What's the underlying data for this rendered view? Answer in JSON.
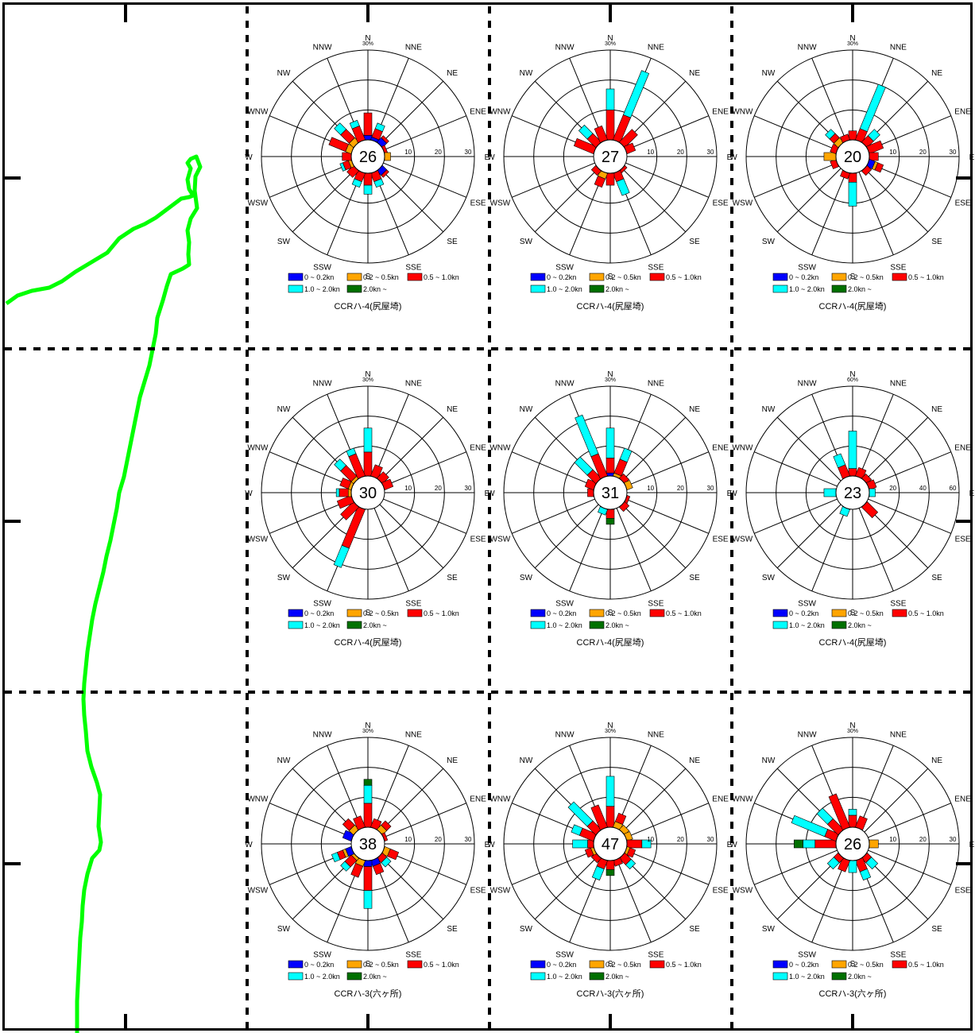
{
  "colors": {
    "speed_bins": [
      "#0000ff",
      "#ffa500",
      "#ff0000",
      "#00ffff",
      "#007000"
    ],
    "coastline": "#00ff00",
    "frame": "#000000",
    "circle": "#000000"
  },
  "legend": {
    "speed_bins": [
      "0 ~ 0.2kn",
      "0.2 ~ 0.5kn",
      "0.5 ~ 1.0kn",
      "1.0 ~ 2.0kn",
      "2.0kn ~"
    ]
  },
  "directions": [
    "N",
    "NNE",
    "NE",
    "ENE",
    "E",
    "ESE",
    "SE",
    "SSE",
    "S",
    "SSW",
    "SW",
    "WSW",
    "W",
    "WNW",
    "NW",
    "NNW"
  ],
  "chart_data": [
    {
      "type": "wind_rose",
      "center_label": "26",
      "station": "CCRハ-4(尻屋埼)",
      "rmax": 30,
      "scale_ticks": [
        "10",
        "20",
        "30"
      ],
      "scale_unit": "%",
      "values": [
        [
          1.5,
          0,
          7.5,
          0,
          0
        ],
        [
          1,
          0,
          3,
          2,
          0
        ],
        [
          2,
          0,
          1,
          0,
          0
        ],
        [
          0,
          0,
          1,
          0,
          0
        ],
        [
          0,
          2,
          0,
          0,
          0
        ],
        [
          0,
          0,
          0,
          0,
          0
        ],
        [
          2,
          0,
          1,
          0,
          0
        ],
        [
          0,
          0,
          3,
          2,
          0
        ],
        [
          0,
          0,
          4,
          3,
          0
        ],
        [
          0,
          0,
          3,
          2,
          0
        ],
        [
          0,
          0,
          3,
          0,
          0
        ],
        [
          0,
          1,
          2,
          1,
          0
        ],
        [
          0,
          0,
          3,
          0,
          0
        ],
        [
          0,
          2,
          6,
          0,
          0
        ],
        [
          0,
          2,
          4,
          3,
          0
        ],
        [
          0,
          0,
          5,
          2,
          0
        ]
      ]
    },
    {
      "type": "wind_rose",
      "center_label": "27",
      "station": "CCRハ-4(尻屋埼)",
      "rmax": 30,
      "scale_ticks": [
        "10",
        "20",
        "30"
      ],
      "scale_unit": "%",
      "values": [
        [
          0,
          0,
          10,
          7,
          0
        ],
        [
          0,
          0,
          9,
          16,
          0
        ],
        [
          0,
          0,
          6,
          0,
          0
        ],
        [
          0,
          0,
          3,
          0,
          0
        ],
        [
          0,
          0,
          0,
          0,
          0
        ],
        [
          0,
          0,
          0,
          0,
          0
        ],
        [
          0,
          0,
          1,
          0,
          0
        ],
        [
          0,
          0,
          3,
          5,
          0
        ],
        [
          0,
          0,
          4,
          0,
          0
        ],
        [
          0,
          2,
          3,
          0,
          0
        ],
        [
          0,
          0,
          2,
          0,
          0
        ],
        [
          0,
          0,
          0,
          0,
          0
        ],
        [
          0,
          0,
          0,
          0,
          0
        ],
        [
          0,
          0,
          7,
          0,
          0
        ],
        [
          0,
          0,
          4,
          4,
          0
        ],
        [
          0,
          0,
          5,
          0,
          0
        ]
      ]
    },
    {
      "type": "wind_rose",
      "center_label": "20",
      "station": "CCRハ-4(尻屋埼)",
      "rmax": 30,
      "scale_ticks": [
        "10",
        "20",
        "30"
      ],
      "scale_unit": "%",
      "values": [
        [
          0,
          0,
          3,
          0,
          0
        ],
        [
          0,
          0,
          4,
          16,
          0
        ],
        [
          0,
          0,
          3,
          3,
          0
        ],
        [
          0,
          0,
          5,
          0,
          0
        ],
        [
          0,
          0,
          3,
          0,
          0
        ],
        [
          2,
          1,
          2,
          0,
          0
        ],
        [
          0,
          0,
          2,
          0,
          0
        ],
        [
          0,
          0,
          0,
          0,
          0
        ],
        [
          0,
          0,
          3,
          8,
          0
        ],
        [
          0,
          0,
          2,
          0,
          0
        ],
        [
          0,
          0,
          0,
          0,
          0
        ],
        [
          0,
          0,
          2,
          0,
          0
        ],
        [
          0,
          4,
          0,
          0,
          0
        ],
        [
          0,
          0,
          2,
          0,
          0
        ],
        [
          0,
          2,
          2,
          2,
          0
        ],
        [
          0,
          0,
          2,
          0,
          0
        ]
      ]
    },
    {
      "type": "wind_rose",
      "center_label": "30",
      "station": "CCRハ-4(尻屋埼)",
      "rmax": 30,
      "scale_ticks": [
        "10",
        "20",
        "30"
      ],
      "scale_unit": "%",
      "values": [
        [
          0,
          0,
          8,
          8,
          0
        ],
        [
          0,
          0,
          4,
          0,
          0
        ],
        [
          0,
          0,
          3,
          0,
          0
        ],
        [
          0,
          0,
          3,
          0,
          0
        ],
        [
          0,
          0,
          0,
          0,
          0
        ],
        [
          0,
          0,
          0,
          0,
          0
        ],
        [
          0,
          0,
          0,
          0,
          0
        ],
        [
          0,
          0,
          0,
          0,
          0
        ],
        [
          0,
          0,
          0,
          0,
          0
        ],
        [
          0,
          0,
          14,
          7,
          0
        ],
        [
          0,
          0,
          6,
          0,
          0
        ],
        [
          0,
          0,
          5,
          0,
          0
        ],
        [
          0,
          1,
          3,
          1,
          0
        ],
        [
          0,
          1,
          3,
          0,
          0
        ],
        [
          0,
          1,
          5,
          3,
          0
        ],
        [
          0,
          0,
          8,
          2,
          0
        ]
      ]
    },
    {
      "type": "wind_rose",
      "center_label": "31",
      "station": "CCRハ-4(尻屋埼)",
      "rmax": 30,
      "scale_ticks": [
        "10",
        "20",
        "30"
      ],
      "scale_unit": "%",
      "values": [
        [
          1,
          0,
          5,
          10,
          0
        ],
        [
          0,
          1,
          5,
          4,
          0
        ],
        [
          0,
          0,
          2,
          0,
          0
        ],
        [
          0,
          2,
          0,
          0,
          0
        ],
        [
          0,
          0,
          0,
          0,
          0
        ],
        [
          0,
          0,
          1,
          0,
          0
        ],
        [
          0,
          0,
          2,
          0,
          0
        ],
        [
          0,
          0,
          0,
          0,
          0
        ],
        [
          0,
          0,
          3,
          0,
          2
        ],
        [
          0,
          0,
          0,
          2,
          0
        ],
        [
          0,
          0,
          0,
          0,
          0
        ],
        [
          0,
          0,
          0,
          0,
          0
        ],
        [
          0,
          0,
          2,
          0,
          0
        ],
        [
          0,
          0,
          3,
          0,
          0
        ],
        [
          0,
          0,
          4,
          6,
          0
        ],
        [
          0,
          0,
          8,
          14,
          0
        ]
      ]
    },
    {
      "type": "wind_rose",
      "center_label": "23",
      "station": "CCRハ-4(尻屋埼)",
      "rmax": 60,
      "scale_ticks": [
        "20",
        "40",
        "60"
      ],
      "scale_unit": "%",
      "values": [
        [
          0,
          0,
          5,
          25,
          0
        ],
        [
          0,
          0,
          6,
          0,
          0
        ],
        [
          0,
          0,
          4,
          0,
          0
        ],
        [
          0,
          0,
          5,
          0,
          0
        ],
        [
          0,
          0,
          0,
          4,
          0
        ],
        [
          0,
          0,
          0,
          0,
          0
        ],
        [
          0,
          0,
          10,
          0,
          0
        ],
        [
          0,
          0,
          0,
          0,
          0
        ],
        [
          0,
          0,
          0,
          0,
          0
        ],
        [
          0,
          0,
          0,
          5,
          0
        ],
        [
          0,
          0,
          0,
          0,
          0
        ],
        [
          0,
          0,
          0,
          0,
          0
        ],
        [
          0,
          0,
          0,
          8,
          0
        ],
        [
          0,
          0,
          0,
          0,
          0
        ],
        [
          0,
          0,
          0,
          0,
          0
        ],
        [
          0,
          0,
          8,
          8,
          0
        ]
      ]
    },
    {
      "type": "wind_rose",
      "center_label": "38",
      "station": "CCRハ-3(六ヶ所)",
      "rmax": 30,
      "scale_ticks": [
        "10",
        "20",
        "30"
      ],
      "scale_unit": "%",
      "values": [
        [
          0,
          0,
          8,
          6,
          2
        ],
        [
          0,
          0,
          3,
          0,
          0
        ],
        [
          0,
          2,
          2,
          0,
          0
        ],
        [
          0,
          0,
          1,
          0,
          0
        ],
        [
          0,
          0,
          0,
          0,
          0
        ],
        [
          0,
          2,
          3,
          0,
          0
        ],
        [
          0,
          0,
          2,
          2,
          0
        ],
        [
          2,
          0,
          3,
          0,
          0
        ],
        [
          2,
          0,
          8,
          6,
          0
        ],
        [
          0,
          2,
          4,
          0,
          0
        ],
        [
          0,
          1,
          3,
          2,
          0
        ],
        [
          2,
          1,
          2,
          2,
          0
        ],
        [
          0,
          0,
          0,
          0,
          0
        ],
        [
          3,
          0,
          0,
          0,
          0
        ],
        [
          0,
          2,
          3,
          0,
          0
        ],
        [
          0,
          0,
          4,
          0,
          0
        ]
      ]
    },
    {
      "type": "wind_rose",
      "center_label": "47",
      "station": "CCRハ-3(六ヶ所)",
      "rmax": 30,
      "scale_ticks": [
        "10",
        "20",
        "30"
      ],
      "scale_unit": "%",
      "values": [
        [
          0,
          0,
          7,
          10,
          0
        ],
        [
          0,
          2,
          3,
          0,
          0
        ],
        [
          0,
          2,
          0,
          0,
          0
        ],
        [
          0,
          2,
          0,
          0,
          0
        ],
        [
          0,
          0,
          5,
          3,
          0
        ],
        [
          0,
          1,
          2,
          0,
          0
        ],
        [
          0,
          0,
          3,
          2,
          0
        ],
        [
          0,
          0,
          2,
          0,
          0
        ],
        [
          0,
          0,
          3,
          0,
          2
        ],
        [
          0,
          0,
          3,
          4,
          0
        ],
        [
          0,
          0,
          2,
          0,
          0
        ],
        [
          0,
          1,
          2,
          0,
          0
        ],
        [
          0,
          0,
          2,
          5,
          0
        ],
        [
          0,
          0,
          5,
          3,
          0
        ],
        [
          0,
          0,
          4,
          9,
          0
        ],
        [
          0,
          0,
          8,
          0,
          0
        ]
      ]
    },
    {
      "type": "wind_rose",
      "center_label": "26",
      "station": "CCRハ-3(六ヶ所)",
      "rmax": 30,
      "scale_ticks": [
        "10",
        "20",
        "30"
      ],
      "scale_unit": "%",
      "values": [
        [
          0,
          0,
          4,
          2,
          0
        ],
        [
          0,
          0,
          4,
          0,
          0
        ],
        [
          0,
          0,
          0,
          0,
          0
        ],
        [
          0,
          0,
          0,
          0,
          0
        ],
        [
          0,
          3,
          0,
          0,
          0
        ],
        [
          0,
          0,
          0,
          0,
          0
        ],
        [
          0,
          0,
          2,
          3,
          0
        ],
        [
          0,
          0,
          4,
          3,
          0
        ],
        [
          0,
          0,
          0,
          4,
          0
        ],
        [
          0,
          0,
          4,
          0,
          0
        ],
        [
          0,
          0,
          2,
          3,
          0
        ],
        [
          0,
          0,
          0,
          0,
          0
        ],
        [
          0,
          0,
          7,
          4,
          3
        ],
        [
          0,
          0,
          4,
          12,
          0
        ],
        [
          0,
          0,
          5,
          5,
          0
        ],
        [
          0,
          0,
          12,
          0,
          0
        ]
      ]
    }
  ]
}
